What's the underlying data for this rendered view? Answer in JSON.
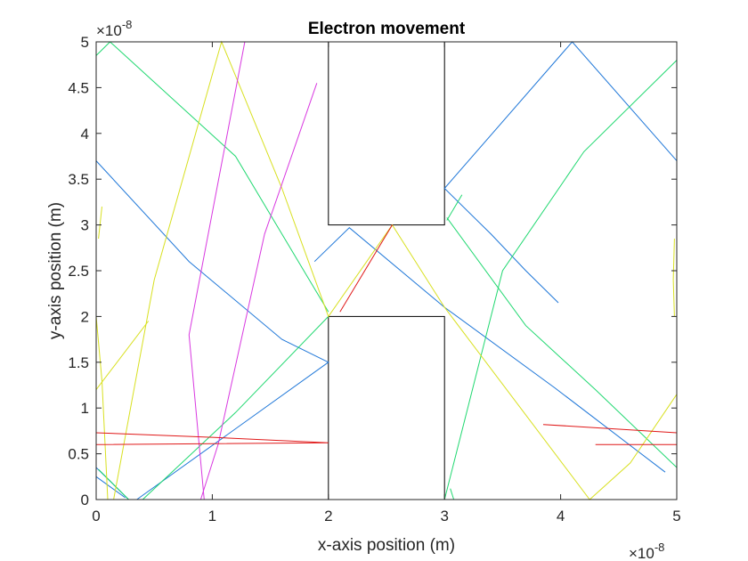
{
  "chart_data": {
    "type": "line",
    "title": "Electron movement",
    "xlabel": "x-axis position (m)",
    "ylabel": "y-axis position (m)",
    "xlim": [
      0,
      5
    ],
    "ylim": [
      0,
      5
    ],
    "x_exponent": "×10^-8",
    "y_exponent": "×10^-8",
    "x_exponent_base": "×10",
    "x_exponent_power": "-8",
    "y_exponent_base": "×10",
    "y_exponent_power": "-8",
    "x_ticks": [
      "0",
      "1",
      "2",
      "3",
      "4",
      "5"
    ],
    "y_ticks": [
      "0",
      "0.5",
      "1",
      "1.5",
      "2",
      "2.5",
      "3",
      "3.5",
      "4",
      "4.5",
      "5"
    ],
    "grid": false,
    "boxes": [
      {
        "x": [
          2,
          3
        ],
        "y": [
          3,
          5
        ]
      },
      {
        "x": [
          2,
          3
        ],
        "y": [
          0,
          2
        ]
      }
    ],
    "series": [
      {
        "color": "#1f77d8",
        "segments": [
          [
            [
              0,
              3.7
            ],
            [
              0.8,
              2.6
            ],
            [
              1.6,
              1.75
            ],
            [
              2.0,
              1.5
            ],
            [
              0.35,
              0.0
            ]
          ],
          [
            [
              1.88,
              2.6
            ],
            [
              2.18,
              2.97
            ],
            [
              3.0,
              2.1
            ],
            [
              3.95,
              1.22
            ],
            [
              4.9,
              0.3
            ]
          ],
          [
            [
              3.0,
              3.4
            ],
            [
              4.1,
              5.0
            ],
            [
              5.0,
              3.7
            ]
          ],
          [
            [
              3.0,
              3.4
            ],
            [
              3.4,
              2.9
            ],
            [
              3.7,
              2.5
            ],
            [
              3.98,
              2.15
            ]
          ],
          [
            [
              0,
              0.35
            ],
            [
              0.28,
              0.0
            ]
          ],
          [
            [
              0,
              0.25
            ],
            [
              0.25,
              0.02
            ]
          ]
        ]
      },
      {
        "color": "#20d870",
        "segments": [
          [
            [
              0.12,
              5.0
            ],
            [
              1.2,
              3.75
            ],
            [
              2.0,
              2.05
            ]
          ],
          [
            [
              0,
              4.85
            ],
            [
              0.12,
              5.0
            ]
          ],
          [
            [
              0.02,
              0.33
            ],
            [
              0.28,
              0.0
            ]
          ],
          [
            [
              0.4,
              0.0
            ],
            [
              1.2,
              0.95
            ],
            [
              2.0,
              2.0
            ]
          ],
          [
            [
              3.0,
              0.0
            ],
            [
              3.5,
              2.5
            ],
            [
              4.2,
              3.8
            ],
            [
              5.0,
              4.8
            ]
          ],
          [
            [
              3.02,
              3.05
            ],
            [
              3.15,
              3.33
            ]
          ],
          [
            [
              3.02,
              3.08
            ],
            [
              3.7,
              1.9
            ],
            [
              4.3,
              1.2
            ],
            [
              5.0,
              0.35
            ]
          ],
          [
            [
              3.05,
              0.12
            ],
            [
              3.08,
              0.0
            ]
          ]
        ]
      },
      {
        "color": "#d8e020",
        "segments": [
          [
            [
              0.15,
              0.0
            ],
            [
              0.5,
              2.4
            ],
            [
              1.08,
              5.0
            ],
            [
              1.6,
              3.4
            ],
            [
              2.0,
              2.0
            ],
            [
              2.55,
              3.0
            ],
            [
              3.0,
              2.1
            ],
            [
              4.25,
              0.0
            ],
            [
              4.6,
              0.4
            ],
            [
              5.0,
              1.15
            ]
          ],
          [
            [
              0.02,
              2.85
            ],
            [
              0.05,
              3.2
            ]
          ],
          [
            [
              0.0,
              1.2
            ],
            [
              0.45,
              1.95
            ]
          ],
          [
            [
              0.0,
              2.0
            ],
            [
              0.05,
              1.3
            ],
            [
              0.1,
              0.0
            ]
          ],
          [
            [
              4.98,
              2.85
            ],
            [
              4.97,
              2.4
            ],
            [
              4.98,
              2.0
            ]
          ]
        ]
      },
      {
        "color": "#d838e0",
        "segments": [
          [
            [
              0.93,
              0.0
            ],
            [
              0.8,
              1.8
            ],
            [
              1.28,
              5.0
            ]
          ],
          [
            [
              0.9,
              0.0
            ],
            [
              1.05,
              0.6
            ],
            [
              1.45,
              2.9
            ],
            [
              1.9,
              4.55
            ]
          ]
        ]
      },
      {
        "color": "#e01818",
        "segments": [
          [
            [
              0.0,
              0.73
            ],
            [
              1.0,
              0.68
            ],
            [
              2.0,
              0.62
            ],
            [
              0.0,
              0.6
            ]
          ],
          [
            [
              3.85,
              0.82
            ],
            [
              5.0,
              0.73
            ]
          ],
          [
            [
              4.3,
              0.6
            ],
            [
              5.0,
              0.6
            ]
          ],
          [
            [
              2.1,
              2.05
            ],
            [
              2.55,
              3.0
            ]
          ]
        ]
      }
    ]
  }
}
